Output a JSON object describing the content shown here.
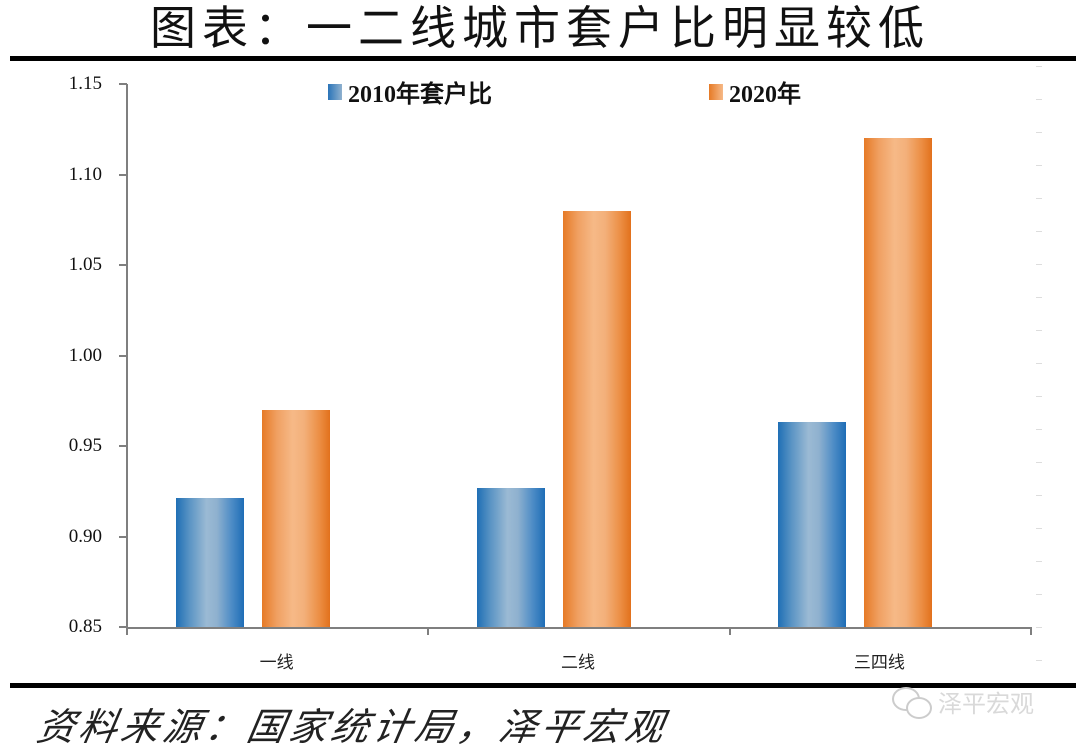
{
  "title": "图表：一二线城市套户比明显较低",
  "source": "资料来源：国家统计局，泽平宏观",
  "watermark": {
    "text": "泽平宏观",
    "icon": "wechat-icon"
  },
  "legend": [
    {
      "label": "2010年套户比",
      "color": "#2a74b8"
    },
    {
      "label": "2020年",
      "color": "#ed8b3f"
    }
  ],
  "y_ticks": [
    "1.15",
    "1.10",
    "1.05",
    "1.00",
    "0.95",
    "0.90",
    "0.85"
  ],
  "x_labels": [
    "一线",
    "二线",
    "三四线"
  ],
  "colors": {
    "series_2010": "#2a74b8",
    "series_2020": "#ed8b3f",
    "axis": "#7f7f7f"
  },
  "chart_data": {
    "type": "bar",
    "title": "图表：一二线城市套户比明显较低",
    "categories": [
      "一线",
      "二线",
      "三四线"
    ],
    "series": [
      {
        "name": "2010年套户比",
        "values": [
          0.921,
          0.927,
          0.963
        ]
      },
      {
        "name": "2020年",
        "values": [
          0.97,
          1.08,
          1.12
        ]
      }
    ],
    "xlabel": "",
    "ylabel": "",
    "ylim": [
      0.85,
      1.15
    ],
    "yticks": [
      0.85,
      0.9,
      0.95,
      1.0,
      1.05,
      1.1,
      1.15
    ],
    "grid": false,
    "legend_position": "top",
    "source": "资料来源：国家统计局，泽平宏观"
  }
}
